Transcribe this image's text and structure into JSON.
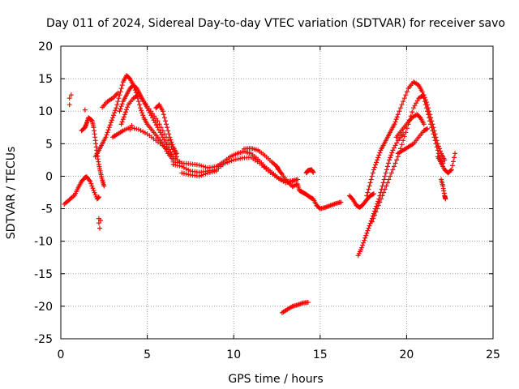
{
  "chart_data": {
    "type": "scatter",
    "title": "Day 011 of 2024, Sidereal Day-to-day VTEC variation (SDTVAR) for receiver savo",
    "xlabel": "GPS time / hours",
    "ylabel": "SDTVAR / TECUs",
    "xlim": [
      0,
      25
    ],
    "ylim": [
      -25,
      20
    ],
    "xticks": [
      0,
      5,
      10,
      15,
      20,
      25
    ],
    "yticks": [
      -25,
      -20,
      -15,
      -10,
      -5,
      0,
      5,
      10,
      15,
      20
    ],
    "grid": true,
    "marker": "+",
    "series": [
      {
        "name": "satellite tracks (main)",
        "color": "#ff0000",
        "points": [
          [
            0.2,
            -4.3
          ],
          [
            0.5,
            -3.6
          ],
          [
            0.8,
            -2.9
          ],
          [
            1.0,
            -1.8
          ],
          [
            1.2,
            -0.8
          ],
          [
            1.4,
            -0.2
          ],
          [
            1.5,
            -0.1
          ],
          [
            1.7,
            -0.8
          ],
          [
            1.9,
            -2.2
          ],
          [
            2.1,
            -3.5
          ],
          [
            2.2,
            -3.2
          ],
          [
            1.2,
            7.0
          ],
          [
            1.4,
            7.5
          ],
          [
            1.5,
            8.2
          ],
          [
            1.6,
            9.0
          ],
          [
            1.8,
            8.6
          ],
          [
            1.9,
            7.5
          ],
          [
            2.0,
            5.5
          ],
          [
            2.1,
            3.5
          ],
          [
            2.2,
            1.8
          ],
          [
            2.3,
            0.5
          ],
          [
            2.4,
            -0.6
          ],
          [
            2.5,
            -1.5
          ],
          [
            2.0,
            3.0
          ],
          [
            2.2,
            4.0
          ],
          [
            2.4,
            5.0
          ],
          [
            2.6,
            6.0
          ],
          [
            2.8,
            7.5
          ],
          [
            3.0,
            9.0
          ],
          [
            3.2,
            10.5
          ],
          [
            3.4,
            12.5
          ],
          [
            3.6,
            14.5
          ],
          [
            3.8,
            15.5
          ],
          [
            4.0,
            15.0
          ],
          [
            4.2,
            14.0
          ],
          [
            4.4,
            12.5
          ],
          [
            4.6,
            10.5
          ],
          [
            4.8,
            9.0
          ],
          [
            5.0,
            8.0
          ],
          [
            5.3,
            7.0
          ],
          [
            5.6,
            6.0
          ],
          [
            5.9,
            5.0
          ],
          [
            6.2,
            3.5
          ],
          [
            6.5,
            2.5
          ],
          [
            3.4,
            10.0
          ],
          [
            3.6,
            11.5
          ],
          [
            3.8,
            12.5
          ],
          [
            4.0,
            13.5
          ],
          [
            4.2,
            14.0
          ],
          [
            4.4,
            13.5
          ],
          [
            4.6,
            12.5
          ],
          [
            4.8,
            11.5
          ],
          [
            5.0,
            10.5
          ],
          [
            5.3,
            9.0
          ],
          [
            5.6,
            7.5
          ],
          [
            5.9,
            6.0
          ],
          [
            6.2,
            4.5
          ],
          [
            6.5,
            3.0
          ],
          [
            3.5,
            8.0
          ],
          [
            3.7,
            9.5
          ],
          [
            3.9,
            11.0
          ],
          [
            4.2,
            12.0
          ],
          [
            4.5,
            12.5
          ],
          [
            4.8,
            11.5
          ],
          [
            5.2,
            10.0
          ],
          [
            5.6,
            8.5
          ],
          [
            6.0,
            6.5
          ],
          [
            6.4,
            4.5
          ],
          [
            6.7,
            3.0
          ],
          [
            3.0,
            6.0
          ],
          [
            3.3,
            6.5
          ],
          [
            3.6,
            7.0
          ],
          [
            4.0,
            7.5
          ],
          [
            4.5,
            7.2
          ],
          [
            5.0,
            6.5
          ],
          [
            5.5,
            5.5
          ],
          [
            6.0,
            4.5
          ],
          [
            6.5,
            3.0
          ],
          [
            7.0,
            2.0
          ],
          [
            5.5,
            10.5
          ],
          [
            5.7,
            11.0
          ],
          [
            5.9,
            10.0
          ],
          [
            6.1,
            8.0
          ],
          [
            6.3,
            6.0
          ],
          [
            6.5,
            4.5
          ],
          [
            6.7,
            3.5
          ],
          [
            2.4,
            10.6
          ],
          [
            2.7,
            11.5
          ],
          [
            3.0,
            12.0
          ],
          [
            3.3,
            12.8
          ],
          [
            6.5,
            2.2
          ],
          [
            7.0,
            2.0
          ],
          [
            7.5,
            1.9
          ],
          [
            8.0,
            1.7
          ],
          [
            8.5,
            1.3
          ],
          [
            9.0,
            1.5
          ],
          [
            9.4,
            2.2
          ],
          [
            9.8,
            3.0
          ],
          [
            10.2,
            3.5
          ],
          [
            10.6,
            3.8
          ],
          [
            11.0,
            3.5
          ],
          [
            11.4,
            2.6
          ],
          [
            11.8,
            1.5
          ],
          [
            12.2,
            0.6
          ],
          [
            12.6,
            -0.3
          ],
          [
            13.0,
            -0.8
          ],
          [
            13.4,
            -0.7
          ],
          [
            13.7,
            -0.5
          ],
          [
            6.5,
            1.8
          ],
          [
            7.0,
            1.5
          ],
          [
            7.5,
            0.8
          ],
          [
            8.0,
            0.6
          ],
          [
            8.5,
            0.8
          ],
          [
            9.0,
            1.0
          ],
          [
            9.5,
            2.0
          ],
          [
            10.0,
            2.5
          ],
          [
            10.5,
            2.8
          ],
          [
            11.0,
            2.9
          ],
          [
            11.5,
            2.0
          ],
          [
            12.0,
            0.8
          ],
          [
            12.5,
            -0.2
          ],
          [
            13.0,
            -1.0
          ],
          [
            13.4,
            -0.8
          ],
          [
            7.0,
            0.5
          ],
          [
            7.5,
            0.2
          ],
          [
            8.0,
            0.0
          ],
          [
            8.5,
            0.5
          ],
          [
            9.0,
            0.8
          ],
          [
            10.6,
            4.2
          ],
          [
            11.0,
            4.3
          ],
          [
            11.4,
            4.0
          ],
          [
            11.8,
            3.2
          ],
          [
            12.2,
            2.2
          ],
          [
            12.5,
            1.5
          ],
          [
            12.6,
            1.0
          ],
          [
            12.8,
            0.3
          ],
          [
            13.1,
            -0.8
          ],
          [
            13.4,
            -1.6
          ],
          [
            13.7,
            -1.2
          ],
          [
            13.8,
            -2.2
          ],
          [
            14.0,
            -2.5
          ],
          [
            14.2,
            -2.8
          ],
          [
            14.4,
            -3.2
          ],
          [
            14.6,
            -3.5
          ],
          [
            14.8,
            -4.5
          ],
          [
            15.0,
            -5.0
          ],
          [
            15.3,
            -4.8
          ],
          [
            15.6,
            -4.5
          ],
          [
            15.9,
            -4.2
          ],
          [
            16.2,
            -4.0
          ],
          [
            14.2,
            0.5
          ],
          [
            14.3,
            0.9
          ],
          [
            14.5,
            1.0
          ],
          [
            14.6,
            0.6
          ],
          [
            12.8,
            -21.0
          ],
          [
            13.1,
            -20.5
          ],
          [
            13.4,
            -20.0
          ],
          [
            13.7,
            -19.8
          ],
          [
            14.0,
            -19.5
          ],
          [
            14.3,
            -19.4
          ],
          [
            16.7,
            -3.0
          ],
          [
            16.9,
            -3.6
          ],
          [
            17.1,
            -4.5
          ],
          [
            17.3,
            -4.8
          ],
          [
            17.5,
            -4.3
          ],
          [
            17.7,
            -3.6
          ],
          [
            17.9,
            -3.0
          ],
          [
            18.1,
            -2.7
          ],
          [
            17.2,
            -12.2
          ],
          [
            17.4,
            -11.0
          ],
          [
            17.6,
            -9.5
          ],
          [
            17.8,
            -8.0
          ],
          [
            18.0,
            -6.5
          ],
          [
            18.2,
            -5.0
          ],
          [
            18.4,
            -3.5
          ],
          [
            18.6,
            -1.5
          ],
          [
            18.8,
            0.5
          ],
          [
            19.0,
            2.5
          ],
          [
            19.2,
            4.0
          ],
          [
            19.5,
            5.5
          ],
          [
            19.8,
            6.5
          ],
          [
            17.7,
            -3.0
          ],
          [
            17.9,
            -1.0
          ],
          [
            18.1,
            1.0
          ],
          [
            18.3,
            2.5
          ],
          [
            18.5,
            4.0
          ],
          [
            18.7,
            5.0
          ],
          [
            18.9,
            6.0
          ],
          [
            19.1,
            7.0
          ],
          [
            19.3,
            8.0
          ],
          [
            19.5,
            9.5
          ],
          [
            19.8,
            11.5
          ],
          [
            20.1,
            13.5
          ],
          [
            20.4,
            14.5
          ],
          [
            20.7,
            14.0
          ],
          [
            20.9,
            13.0
          ],
          [
            21.1,
            11.0
          ],
          [
            21.3,
            9.0
          ],
          [
            21.5,
            7.0
          ],
          [
            21.7,
            5.0
          ],
          [
            21.9,
            3.0
          ],
          [
            22.1,
            2.0
          ],
          [
            18.0,
            -7.0
          ],
          [
            18.3,
            -5.0
          ],
          [
            18.6,
            -3.0
          ],
          [
            18.9,
            -1.0
          ],
          [
            19.2,
            1.0
          ],
          [
            19.5,
            3.0
          ],
          [
            19.8,
            5.5
          ],
          [
            20.1,
            8.0
          ],
          [
            20.4,
            10.5
          ],
          [
            20.7,
            12.0
          ],
          [
            21.0,
            12.5
          ],
          [
            21.2,
            11.0
          ],
          [
            21.4,
            9.0
          ],
          [
            21.6,
            7.0
          ],
          [
            21.8,
            5.0
          ],
          [
            22.0,
            3.5
          ],
          [
            22.2,
            2.5
          ],
          [
            19.4,
            6.0
          ],
          [
            19.7,
            7.0
          ],
          [
            20.0,
            8.0
          ],
          [
            20.3,
            9.0
          ],
          [
            20.6,
            9.5
          ],
          [
            20.8,
            9.0
          ],
          [
            21.0,
            8.0
          ],
          [
            19.5,
            3.5
          ],
          [
            19.8,
            4.0
          ],
          [
            20.1,
            4.5
          ],
          [
            20.4,
            5.0
          ],
          [
            20.7,
            6.0
          ],
          [
            21.0,
            7.0
          ],
          [
            21.2,
            7.3
          ],
          [
            21.8,
            3.0
          ],
          [
            22.0,
            2.0
          ],
          [
            22.2,
            1.0
          ],
          [
            22.4,
            0.5
          ],
          [
            22.6,
            1.0
          ],
          [
            22.8,
            3.5
          ],
          [
            22.0,
            -0.5
          ],
          [
            22.1,
            -1.5
          ],
          [
            22.2,
            -3.0
          ],
          [
            22.25,
            -3.5
          ]
        ]
      },
      {
        "name": "outliers",
        "color": "#ff0000",
        "points": [
          [
            0.5,
            12.0
          ],
          [
            0.5,
            11.0
          ],
          [
            0.6,
            12.5
          ],
          [
            1.4,
            10.2
          ],
          [
            2.2,
            -6.5
          ],
          [
            2.2,
            -7.2
          ],
          [
            2.25,
            -8.0
          ],
          [
            2.3,
            -6.8
          ],
          [
            4.1,
            7.8
          ],
          [
            4.0,
            7.2
          ],
          [
            3.1,
            6.2
          ]
        ]
      }
    ]
  }
}
